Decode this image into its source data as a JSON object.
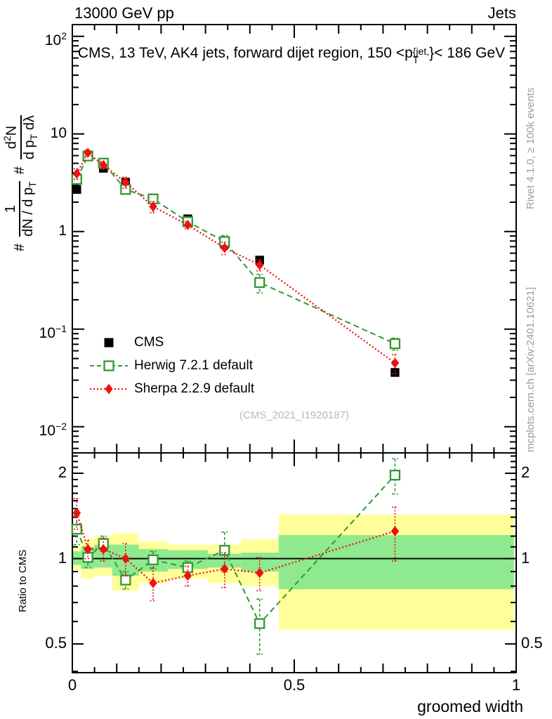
{
  "header": {
    "left": "13000 GeV pp",
    "right": "Jets"
  },
  "title": {
    "pre": "CMS, 13 TeV, AK4 jets, forward dijet region, 150 <p",
    "sup": "{jet,",
    "sub": "T",
    "post": "}< 186 GeV"
  },
  "ylabel_main": {
    "hash1": "#",
    "frac1": {
      "num": "1",
      "den_pre": "dN / d p",
      "den_sub": "T"
    },
    "hash2": "#",
    "frac2": {
      "num_pre": "d",
      "num_sup": "2",
      "num_post": "N",
      "den_pre": "d p",
      "den_sub": "T",
      "den_post": " dλ"
    }
  },
  "right_texts": {
    "top": "Rivet 4.1.0, ≥ 100k events",
    "bottom": "mcplots.cern.ch [arXiv:2401.10621]"
  },
  "watermark": "(CMS_2021_I1920187)",
  "ratio_ylabel": "Ratio to CMS",
  "xlabel": "groomed width",
  "legend": {
    "items": [
      {
        "label": "CMS",
        "marker": "filled-square"
      },
      {
        "label": "Herwig 7.2.1 default",
        "marker": "open-square"
      },
      {
        "label": "Sherpa 2.2.9 default",
        "marker": "filled-diamond"
      }
    ]
  },
  "colors": {
    "cms": "#000000",
    "herwig": "#339933",
    "sherpa": "#ee1111",
    "band_yellow": "#ffff99",
    "band_green": "#8fe98f",
    "gray_text": "#9c9c9c",
    "watermark": "#b9b9b9"
  },
  "chart_data": {
    "type": "line",
    "title": "CMS, 13 TeV, AK4 jets, forward dijet region, 150 < pT^{jet} < 186 GeV",
    "xlabel": "groomed width",
    "xlim": [
      0,
      1
    ],
    "x_tick_step": 0.05,
    "x_major_ticks": [
      0,
      0.5,
      1
    ],
    "x_tick_labels": [
      "0",
      "0.5",
      "1"
    ],
    "main_panel": {
      "yscale": "log",
      "ylim": [
        0.0054,
        132
      ],
      "ytick_values": [
        100,
        10,
        1,
        0.1,
        0.01
      ],
      "ytick_labels": [
        [
          "10",
          "2"
        ],
        [
          "10",
          ""
        ],
        [
          "1",
          ""
        ],
        [
          "10",
          "−1"
        ],
        [
          "10",
          "−2"
        ]
      ],
      "x": [
        0.01,
        0.035,
        0.07,
        0.12,
        0.182,
        0.26,
        0.343,
        0.422,
        0.727
      ],
      "series": [
        {
          "name": "CMS",
          "marker": "filled-square",
          "line": "none",
          "y": [
            2.7,
            5.9,
            4.45,
            3.2,
            2.18,
            1.35,
            0.74,
            0.51,
            0.036
          ],
          "yerr": [
            0.12,
            0.22,
            0.18,
            0.12,
            0.09,
            0.06,
            0.04,
            0.03,
            0.003
          ]
        },
        {
          "name": "Herwig 7.2.1 default",
          "marker": "open-square",
          "line": "dashed",
          "y": [
            3.43,
            5.95,
            5.02,
            2.7,
            2.16,
            1.26,
            0.79,
            0.3,
            0.071
          ],
          "yerr": [
            0.38,
            0.4,
            0.33,
            0.16,
            0.14,
            0.08,
            0.12,
            0.065,
            0.01
          ]
        },
        {
          "name": "Sherpa 2.2.9 default",
          "marker": "filled-diamond",
          "line": "dotted",
          "y": [
            3.92,
            6.4,
            4.8,
            3.2,
            1.8,
            1.17,
            0.68,
            0.455,
            0.045
          ],
          "yerr": [
            0.48,
            0.45,
            0.44,
            0.42,
            0.24,
            0.1,
            0.1,
            0.06,
            0.01
          ]
        }
      ]
    },
    "ratio_panel": {
      "ylabel": "Ratio to CMS",
      "yscale": "log",
      "ylim": [
        0.396,
        2.36
      ],
      "ytick_values": [
        2,
        1,
        0.5
      ],
      "ytick_labels": [
        "2",
        "1",
        "0.5"
      ],
      "reference": 1,
      "band_edges": [
        0,
        0.02,
        0.05,
        0.09,
        0.15,
        0.215,
        0.305,
        0.38,
        0.465,
        0.995
      ],
      "yellow_lo": [
        0.91,
        0.85,
        0.87,
        0.77,
        0.82,
        0.85,
        0.82,
        0.8,
        0.56
      ],
      "yellow_hi": [
        1.1,
        1.17,
        1.2,
        1.23,
        1.15,
        1.12,
        1.12,
        1.17,
        1.43
      ],
      "green_lo": [
        0.95,
        0.92,
        0.93,
        0.87,
        0.9,
        0.92,
        0.93,
        0.9,
        0.78
      ],
      "green_hi": [
        1.06,
        1.1,
        1.12,
        1.12,
        1.08,
        1.07,
        1.04,
        1.05,
        1.21
      ],
      "x": [
        0.01,
        0.035,
        0.07,
        0.12,
        0.182,
        0.26,
        0.343,
        0.422,
        0.727
      ],
      "series": [
        {
          "name": "Herwig 7.2.1 default",
          "marker": "open-square",
          "line": "dashed",
          "ratio": [
            1.27,
            1.01,
            1.13,
            0.84,
            0.99,
            0.93,
            1.07,
            0.59,
            1.97
          ],
          "err": [
            0.15,
            0.08,
            0.07,
            0.06,
            0.07,
            0.05,
            0.17,
            0.13,
            0.28
          ]
        },
        {
          "name": "Sherpa 2.2.9 default",
          "marker": "filled-diamond",
          "line": "dotted",
          "ratio": [
            1.45,
            1.08,
            1.08,
            1.0,
            0.82,
            0.87,
            0.92,
            0.89,
            1.25
          ],
          "err": [
            0.18,
            0.08,
            0.1,
            0.13,
            0.11,
            0.07,
            0.13,
            0.12,
            0.27
          ]
        }
      ]
    }
  }
}
